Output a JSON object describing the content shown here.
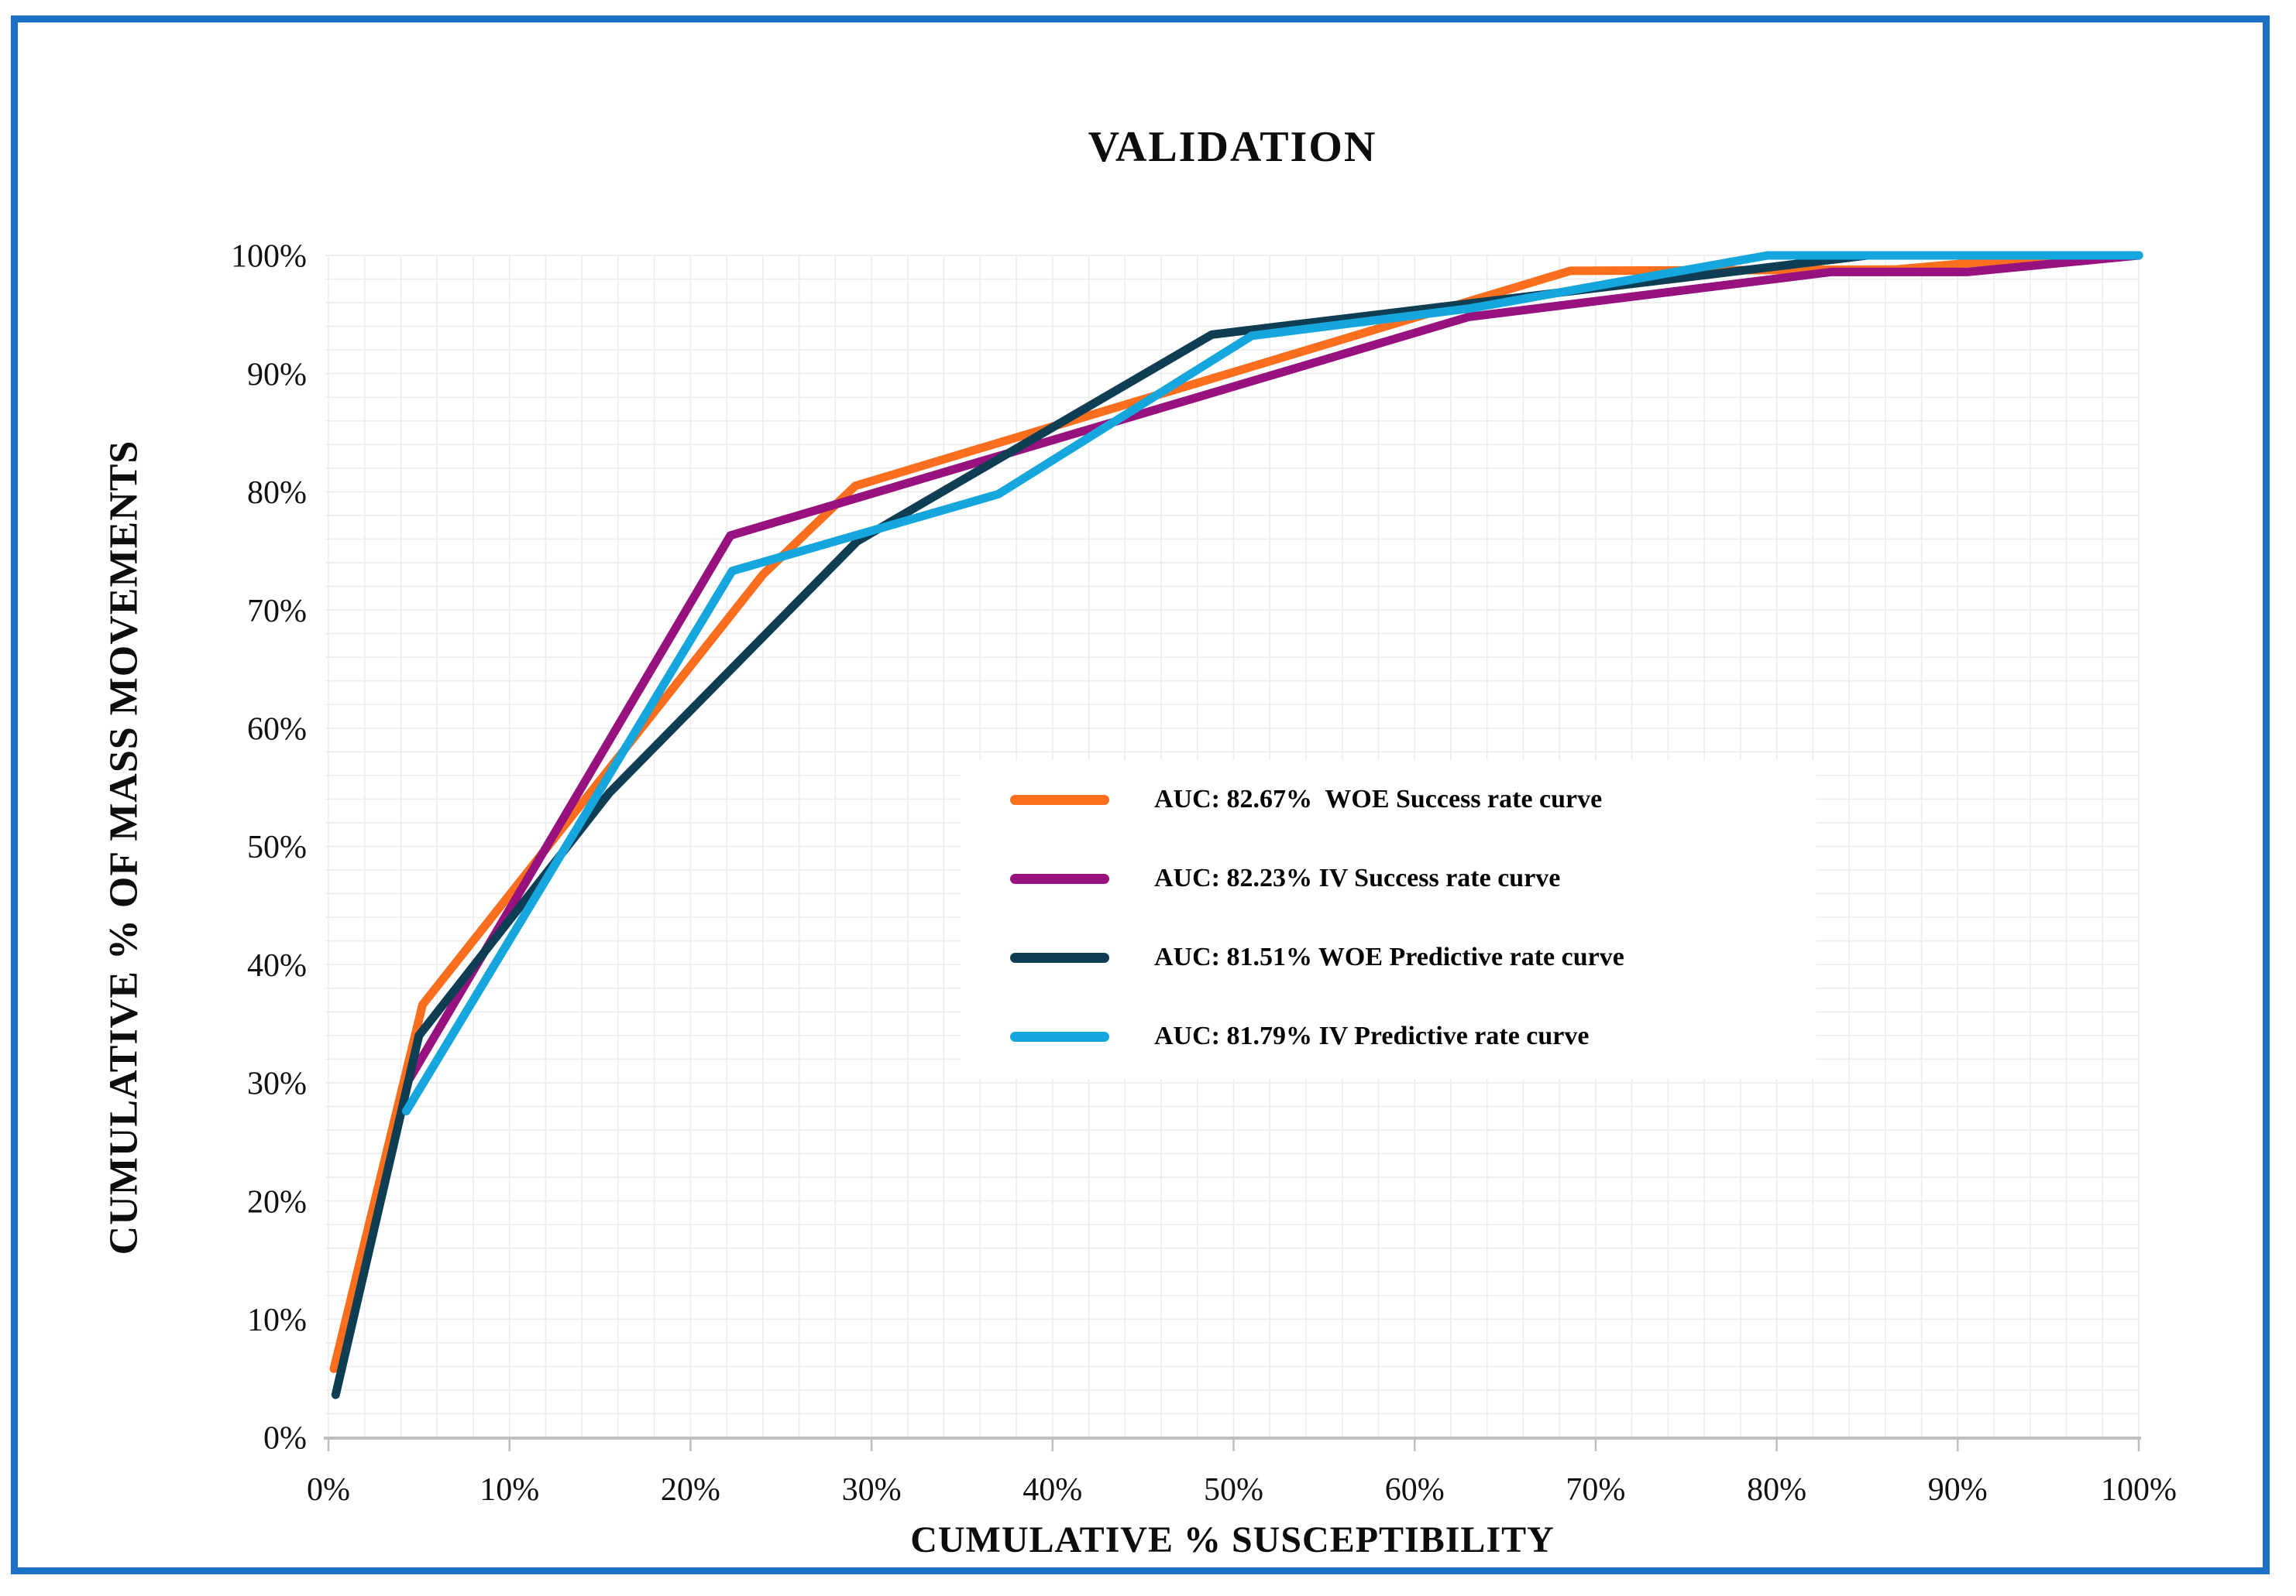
{
  "figure": {
    "border_color": "#1C70C6",
    "background": "#FFFFFF",
    "grid_color": "#ECECEC",
    "axis_line_color": "#BFBFBF",
    "text_color": "#111111"
  },
  "title": "VALIDATION",
  "x_axis": {
    "title": "CUMULATIVE % SUSCEPTIBILITY",
    "tick_labels": [
      "0%",
      "10%",
      "20%",
      "30%",
      "40%",
      "50%",
      "60%",
      "70%",
      "80%",
      "90%",
      "100%"
    ]
  },
  "y_axis": {
    "title": "CUMULATIVE % OF MASS MOVEMENTS",
    "tick_labels": [
      "0%",
      "10%",
      "20%",
      "30%",
      "40%",
      "50%",
      "60%",
      "70%",
      "80%",
      "90%",
      "100%"
    ]
  },
  "chart_data": {
    "type": "line",
    "title": "VALIDATION",
    "xlabel": "CUMULATIVE % SUSCEPTIBILITY",
    "ylabel": "CUMULATIVE % OF MASS MOVEMENTS",
    "xlim": [
      0,
      100
    ],
    "ylim": [
      0,
      100
    ],
    "units": "percent",
    "major_tick_step": 10,
    "minor_grid_step": 2,
    "grid": "minor-mesh",
    "legend_position": "center-right",
    "legend_border": "none",
    "series": [
      {
        "name": "AUC: 82.67%  WOE Success rate curve",
        "auc_percent": 82.67,
        "color": "#FA6E1E",
        "points": [
          [
            0.3,
            5.8
          ],
          [
            5.2,
            36.6
          ],
          [
            24,
            73
          ],
          [
            29.1,
            80.5
          ],
          [
            68.6,
            98.7
          ],
          [
            86.5,
            98.8
          ],
          [
            94,
            99.8
          ],
          [
            100,
            100
          ]
        ]
      },
      {
        "name": "AUC: 82.23% IV Success rate curve",
        "auc_percent": 82.23,
        "color": "#97127F",
        "points": [
          [
            4.5,
            30.4
          ],
          [
            22.2,
            76.3
          ],
          [
            63,
            94.8
          ],
          [
            83,
            98.6
          ],
          [
            90.5,
            98.6
          ],
          [
            100,
            100
          ]
        ]
      },
      {
        "name": "AUC: 81.51% WOE Predictive rate curve",
        "auc_percent": 81.51,
        "color": "#0F3E54",
        "points": [
          [
            0.4,
            3.6
          ],
          [
            5,
            34
          ],
          [
            15.5,
            54.5
          ],
          [
            29.2,
            75.8
          ],
          [
            48.8,
            93.3
          ],
          [
            85,
            100
          ],
          [
            100,
            100
          ]
        ]
      },
      {
        "name": "AUC: 81.79% IV Predictive rate curve",
        "auc_percent": 81.79,
        "color": "#16A6DE",
        "points": [
          [
            4.3,
            27.6
          ],
          [
            22.3,
            73.3
          ],
          [
            37,
            79.8
          ],
          [
            51,
            93.2
          ],
          [
            63,
            95.5
          ],
          [
            79.5,
            100
          ],
          [
            100,
            100
          ]
        ]
      }
    ]
  }
}
